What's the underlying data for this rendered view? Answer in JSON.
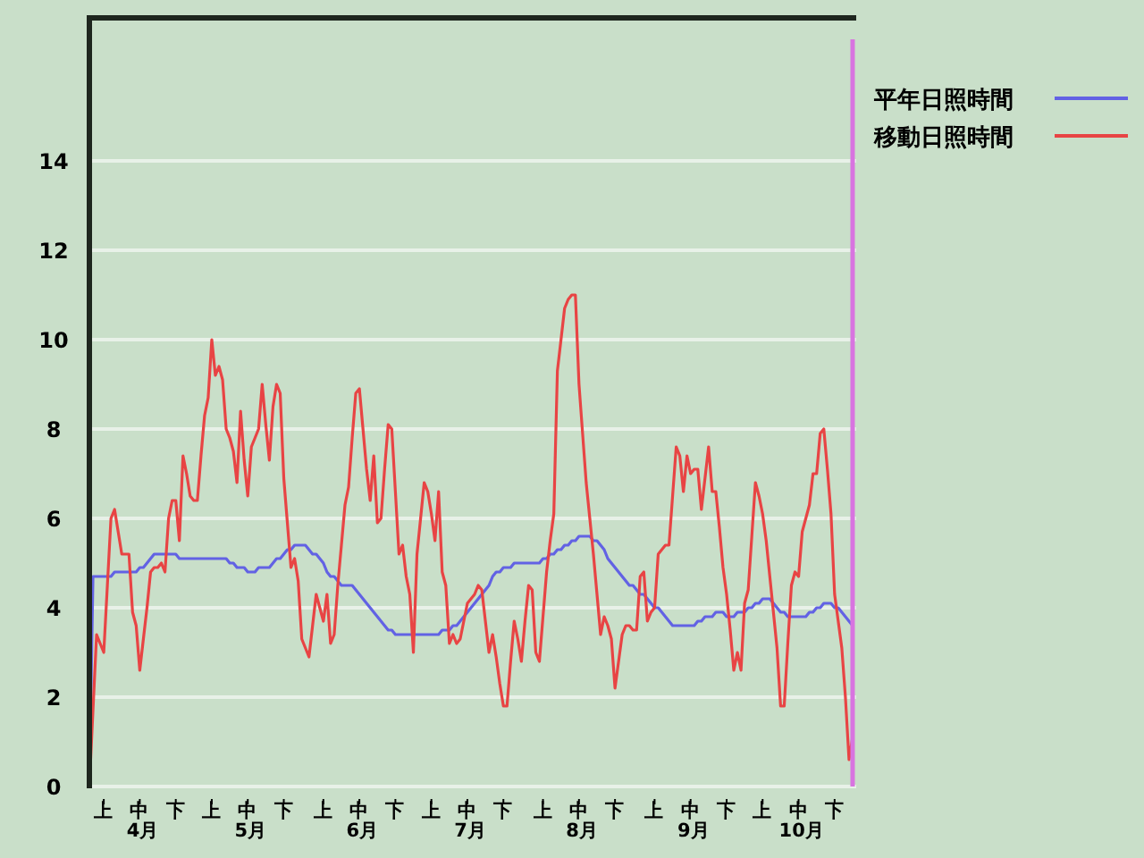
{
  "chart_data": {
    "type": "line",
    "categories": [
      null,
      null,
      null,
      null,
      "上",
      null,
      null,
      null,
      null,
      null,
      null,
      null,
      null,
      null,
      "中\n4月",
      null,
      null,
      null,
      null,
      null,
      null,
      null,
      null,
      null,
      "下",
      null,
      null,
      null,
      null,
      null,
      null,
      null,
      null,
      null,
      "上",
      null,
      null,
      null,
      null,
      null,
      null,
      null,
      null,
      null,
      "中\n5月",
      null,
      null,
      null,
      null,
      null,
      null,
      null,
      null,
      null,
      "下",
      null,
      null,
      null,
      null,
      null,
      null,
      null,
      null,
      null,
      null,
      "上",
      null,
      null,
      null,
      null,
      null,
      null,
      null,
      null,
      null,
      "中\n6月",
      null,
      null,
      null,
      null,
      null,
      null,
      null,
      null,
      null,
      "下",
      null,
      null,
      null,
      null,
      null,
      null,
      null,
      null,
      null,
      "上",
      null,
      null,
      null,
      null,
      null,
      null,
      null,
      null,
      null,
      "中\n7月",
      null,
      null,
      null,
      null,
      null,
      null,
      null,
      null,
      null,
      "下",
      null,
      null,
      null,
      null,
      null,
      null,
      null,
      null,
      null,
      null,
      "上",
      null,
      null,
      null,
      null,
      null,
      null,
      null,
      null,
      null,
      "中\n8月",
      null,
      null,
      null,
      null,
      null,
      null,
      null,
      null,
      null,
      "下",
      null,
      null,
      null,
      null,
      null,
      null,
      null,
      null,
      null,
      null,
      "上",
      null,
      null,
      null,
      null,
      null,
      null,
      null,
      null,
      null,
      "中\n9月",
      null,
      null,
      null,
      null,
      null,
      null,
      null,
      null,
      null,
      "下",
      null,
      null,
      null,
      null,
      null,
      null,
      null,
      null,
      null,
      "上",
      null,
      null,
      null,
      null,
      null,
      null,
      null,
      null,
      null,
      "中\n10月",
      null,
      null,
      null,
      null,
      null,
      null,
      null,
      null,
      null,
      "下",
      null,
      null,
      null,
      null,
      null,
      null
    ],
    "series": [
      {
        "name": "平年日照時間",
        "color": "#6262e4",
        "values": [
          0,
          4.7,
          4.7,
          4.7,
          4.7,
          4.7,
          4.7,
          4.8,
          4.8,
          4.8,
          4.8,
          4.8,
          4.8,
          4.8,
          4.9,
          4.9,
          5.0,
          5.1,
          5.2,
          5.2,
          5.2,
          5.2,
          5.2,
          5.2,
          5.2,
          5.1,
          5.1,
          5.1,
          5.1,
          5.1,
          5.1,
          5.1,
          5.1,
          5.1,
          5.1,
          5.1,
          5.1,
          5.1,
          5.1,
          5.0,
          5.0,
          4.9,
          4.9,
          4.9,
          4.8,
          4.8,
          4.8,
          4.9,
          4.9,
          4.9,
          4.9,
          5.0,
          5.1,
          5.1,
          5.2,
          5.3,
          5.3,
          5.4,
          5.4,
          5.4,
          5.4,
          5.3,
          5.2,
          5.2,
          5.1,
          5.0,
          4.8,
          4.7,
          4.7,
          4.6,
          4.5,
          4.5,
          4.5,
          4.5,
          4.4,
          4.3,
          4.2,
          4.1,
          4.0,
          3.9,
          3.8,
          3.7,
          3.6,
          3.5,
          3.5,
          3.4,
          3.4,
          3.4,
          3.4,
          3.4,
          3.4,
          3.4,
          3.4,
          3.4,
          3.4,
          3.4,
          3.4,
          3.4,
          3.5,
          3.5,
          3.5,
          3.6,
          3.6,
          3.7,
          3.8,
          3.9,
          4.0,
          4.1,
          4.2,
          4.3,
          4.4,
          4.5,
          4.7,
          4.8,
          4.8,
          4.9,
          4.9,
          4.9,
          5.0,
          5.0,
          5.0,
          5.0,
          5.0,
          5.0,
          5.0,
          5.0,
          5.1,
          5.1,
          5.2,
          5.2,
          5.3,
          5.3,
          5.4,
          5.4,
          5.5,
          5.5,
          5.6,
          5.6,
          5.6,
          5.6,
          5.5,
          5.5,
          5.4,
          5.3,
          5.1,
          5.0,
          4.9,
          4.8,
          4.7,
          4.6,
          4.5,
          4.5,
          4.4,
          4.3,
          4.3,
          4.2,
          4.1,
          4.0,
          4.0,
          3.9,
          3.8,
          3.7,
          3.6,
          3.6,
          3.6,
          3.6,
          3.6,
          3.6,
          3.6,
          3.7,
          3.7,
          3.8,
          3.8,
          3.8,
          3.9,
          3.9,
          3.9,
          3.8,
          3.8,
          3.8,
          3.9,
          3.9,
          3.9,
          4.0,
          4.0,
          4.1,
          4.1,
          4.2,
          4.2,
          4.2,
          4.1,
          4.0,
          3.9,
          3.9,
          3.8,
          3.8,
          3.8,
          3.8,
          3.8,
          3.8,
          3.9,
          3.9,
          4.0,
          4.0,
          4.1,
          4.1,
          4.1,
          4.0,
          4.0,
          3.9,
          3.8,
          3.7,
          3.6,
          null
        ]
      },
      {
        "name": "移動日照時間",
        "color": "#e84444",
        "values": [
          0,
          1.7,
          3.4,
          3.2,
          3.0,
          4.5,
          6.0,
          6.2,
          5.7,
          5.2,
          5.2,
          5.2,
          3.9,
          3.6,
          2.6,
          3.3,
          4.0,
          4.8,
          4.9,
          4.9,
          5.0,
          4.8,
          6.0,
          6.4,
          6.4,
          5.5,
          7.4,
          7.0,
          6.5,
          6.4,
          6.4,
          7.4,
          8.3,
          8.7,
          10.0,
          9.2,
          9.4,
          9.1,
          8.0,
          7.8,
          7.5,
          6.8,
          8.4,
          7.3,
          6.5,
          7.6,
          7.8,
          8.0,
          9.0,
          8.1,
          7.3,
          8.5,
          9.0,
          8.8,
          6.9,
          5.9,
          4.9,
          5.1,
          4.6,
          3.3,
          3.1,
          2.9,
          3.6,
          4.3,
          4.0,
          3.7,
          4.3,
          3.2,
          3.4,
          4.5,
          5.4,
          6.3,
          6.7,
          7.8,
          8.8,
          8.9,
          8.0,
          7.1,
          6.4,
          7.4,
          5.9,
          6.0,
          7.1,
          8.1,
          8.0,
          6.6,
          5.2,
          5.4,
          4.7,
          4.3,
          3.0,
          5.2,
          6.0,
          6.8,
          6.6,
          6.1,
          5.5,
          6.6,
          4.8,
          4.5,
          3.2,
          3.4,
          3.2,
          3.3,
          3.7,
          4.1,
          4.2,
          4.3,
          4.5,
          4.4,
          3.7,
          3.0,
          3.4,
          2.9,
          2.3,
          1.8,
          1.8,
          2.8,
          3.7,
          3.3,
          2.8,
          3.7,
          4.5,
          4.4,
          3.0,
          2.8,
          3.8,
          4.8,
          5.5,
          6.1,
          9.3,
          10.0,
          10.7,
          10.9,
          11.0,
          11.0,
          9.0,
          7.9,
          6.8,
          6.0,
          5.2,
          4.3,
          3.4,
          3.8,
          3.6,
          3.3,
          2.2,
          2.8,
          3.4,
          3.6,
          3.6,
          3.5,
          3.5,
          4.7,
          4.8,
          3.7,
          3.9,
          4.0,
          5.2,
          5.3,
          5.4,
          5.4,
          6.5,
          7.6,
          7.4,
          6.6,
          7.4,
          7.0,
          7.1,
          7.1,
          6.2,
          6.9,
          7.6,
          6.6,
          6.6,
          5.8,
          4.9,
          4.3,
          3.5,
          2.6,
          3.0,
          2.6,
          4.1,
          4.4,
          5.6,
          6.8,
          6.5,
          6.1,
          5.5,
          4.7,
          3.9,
          3.1,
          1.8,
          1.8,
          3.2,
          4.5,
          4.8,
          4.7,
          5.7,
          6.0,
          6.3,
          7.0,
          7.0,
          7.9,
          8.0,
          7.1,
          6.1,
          4.3,
          3.7,
          3.1,
          2.0,
          0.6,
          1.1,
          null
        ]
      }
    ],
    "ylim": [
      0,
      17.2
    ],
    "yticks": [
      0,
      2,
      4,
      6,
      8,
      10,
      12,
      14
    ],
    "grid": "y",
    "legend": "top right"
  }
}
